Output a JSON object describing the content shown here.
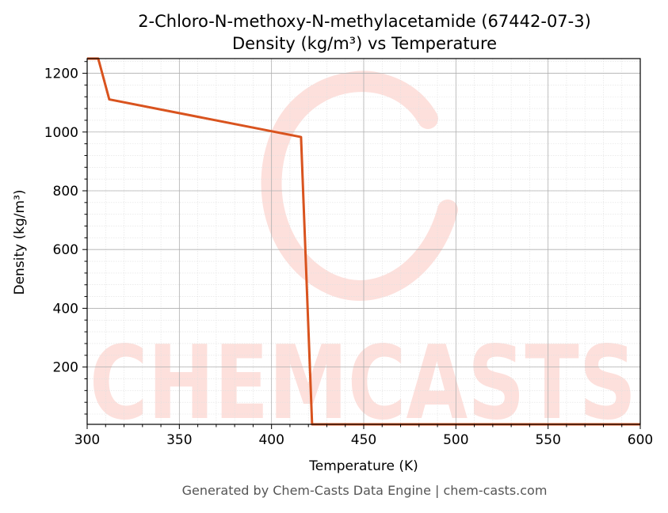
{
  "chart_data": {
    "type": "line",
    "title": "2-Chloro-N-methoxy-N-methylacetamide (67442-07-3)",
    "subtitle": "Density (kg/m³) vs Temperature",
    "xlabel": "Temperature (K)",
    "ylabel": "Density (kg/m³)",
    "xlim": [
      300,
      600
    ],
    "ylim": [
      5,
      1250
    ],
    "x_ticks": [
      300,
      350,
      400,
      450,
      500,
      550,
      600
    ],
    "y_ticks": [
      200,
      400,
      600,
      800,
      1000,
      1200
    ],
    "x_tick_labels": [
      "300",
      "350",
      "400",
      "450",
      "500",
      "550",
      "600"
    ],
    "y_tick_labels": [
      "200",
      "400",
      "600",
      "800",
      "1000",
      "1200"
    ],
    "grid": true,
    "series": [
      {
        "color": "#d9531e",
        "x": [
          300,
          306,
          312,
          416,
          422,
          600
        ],
        "y": [
          1250,
          1250,
          1111,
          983,
          5,
          5
        ]
      }
    ],
    "watermark": "CHEMCASTS",
    "footer": "Generated by Chem-Casts Data Engine | chem-casts.com"
  },
  "colors": {
    "line": "#d9531e",
    "watermark": "#fde0dc",
    "grid_major": "#b0b0b0",
    "grid_minor": "#e0e0e0",
    "footer_text": "#555555"
  }
}
